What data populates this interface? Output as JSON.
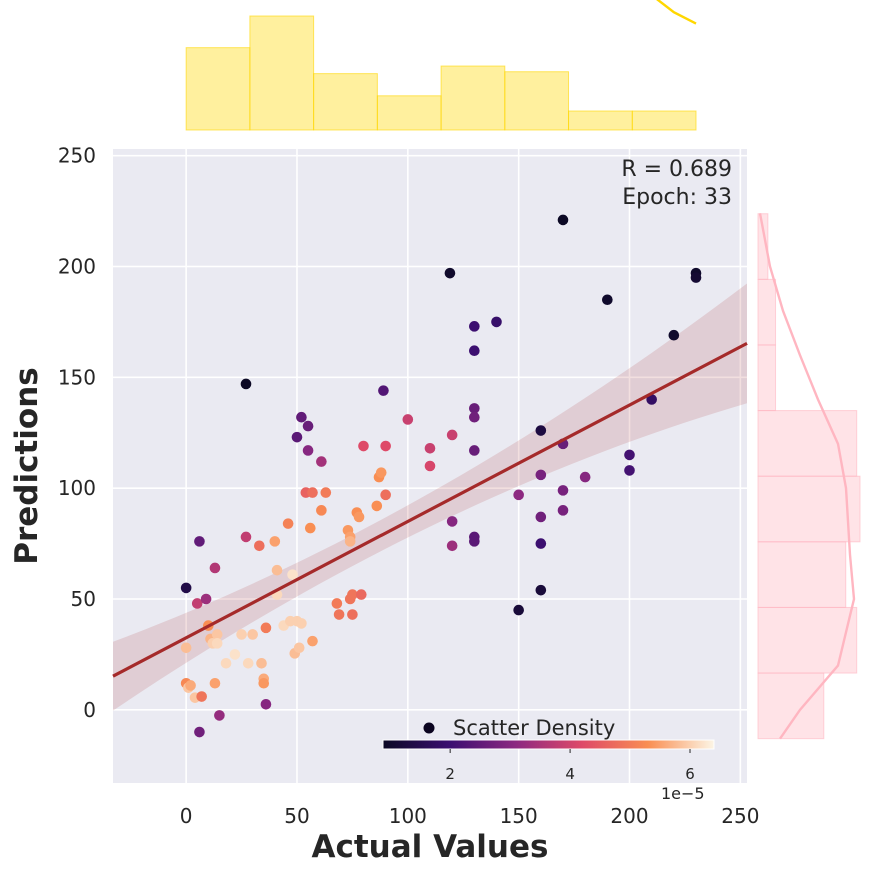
{
  "chart_data": {
    "type": "scatter",
    "xlabel": "Actual Values",
    "ylabel": "Predictions",
    "xlim": [
      -33,
      253
    ],
    "ylim": [
      -33,
      253
    ],
    "xticks": [
      "0",
      "50",
      "100",
      "150",
      "200",
      "250"
    ],
    "yticks": [
      "0",
      "50",
      "100",
      "150",
      "200",
      "250"
    ],
    "grid": true,
    "annotation": {
      "r_text": "R = 0.689",
      "epoch_text": "Epoch: 33"
    },
    "legend": {
      "label": "Scatter Density",
      "placement": "bottom-right"
    },
    "colorbar": {
      "ticks": [
        "2",
        "4",
        "6"
      ],
      "tick_values": [
        2,
        4,
        6
      ],
      "min": 0.88,
      "max": 6.4,
      "offset_label": "1e−5"
    },
    "regression": {
      "slope": 0.525,
      "intercept": 32.5,
      "ci_half_width_edges": 27,
      "ci_half_width_center": 7
    },
    "points": [
      [
        0,
        55,
        1.4
      ],
      [
        0,
        28,
        5.8
      ],
      [
        0,
        12,
        5.2
      ],
      [
        1,
        10,
        5.9
      ],
      [
        2,
        11,
        5.6
      ],
      [
        4,
        5.5,
        5.9
      ],
      [
        5,
        48,
        3.8
      ],
      [
        6,
        76,
        2.5
      ],
      [
        6,
        -10,
        2.7
      ],
      [
        7,
        6,
        4.9
      ],
      [
        9,
        50,
        3.3
      ],
      [
        10,
        38,
        5.3
      ],
      [
        11,
        32,
        5.7
      ],
      [
        12,
        30,
        6.0
      ],
      [
        13,
        64,
        3.6
      ],
      [
        13,
        12,
        5.5
      ],
      [
        14,
        34,
        5.9
      ],
      [
        14,
        30,
        6.1
      ],
      [
        15,
        -2.5,
        3.2
      ],
      [
        18,
        21,
        6.1
      ],
      [
        22,
        25,
        6.2
      ],
      [
        25,
        34,
        6.0
      ],
      [
        27,
        147,
        0.9
      ],
      [
        27,
        78,
        3.8
      ],
      [
        28,
        21,
        6.1
      ],
      [
        30,
        34,
        5.9
      ],
      [
        33,
        74,
        4.8
      ],
      [
        34,
        21,
        5.8
      ],
      [
        35,
        14,
        5.6
      ],
      [
        35,
        12,
        5.4
      ],
      [
        36,
        2.5,
        3.0
      ],
      [
        36,
        37,
        5.0
      ],
      [
        40,
        76,
        5.5
      ],
      [
        41,
        63,
        5.8
      ],
      [
        41,
        52,
        6.1
      ],
      [
        44,
        38,
        6.1
      ],
      [
        46,
        84,
        5.1
      ],
      [
        47,
        40,
        6.0
      ],
      [
        48,
        61,
        6.2
      ],
      [
        49,
        25.5,
        5.8
      ],
      [
        50,
        40,
        6.0
      ],
      [
        50,
        123,
        2.4
      ],
      [
        51,
        28,
        5.9
      ],
      [
        52,
        132,
        2.5
      ],
      [
        52,
        39,
        6.0
      ],
      [
        54,
        98,
        4.6
      ],
      [
        55,
        117,
        3.0
      ],
      [
        55,
        128,
        2.6
      ],
      [
        56,
        82,
        5.3
      ],
      [
        57,
        98,
        4.8
      ],
      [
        57,
        31,
        5.5
      ],
      [
        61,
        112,
        3.4
      ],
      [
        61,
        90,
        5.2
      ],
      [
        63,
        98,
        5.0
      ],
      [
        68,
        48,
        5.0
      ],
      [
        69,
        43,
        4.9
      ],
      [
        73,
        81,
        5.4
      ],
      [
        74,
        78,
        5.5
      ],
      [
        74,
        76,
        5.7
      ],
      [
        74,
        50,
        4.9
      ],
      [
        75,
        52,
        4.9
      ],
      [
        75,
        43,
        4.8
      ],
      [
        77,
        89,
        5.3
      ],
      [
        78,
        87,
        5.4
      ],
      [
        79,
        52,
        4.7
      ],
      [
        80,
        119,
        4.2
      ],
      [
        86,
        92,
        5.3
      ],
      [
        87,
        105,
        5.3
      ],
      [
        88,
        107,
        5.4
      ],
      [
        89,
        144,
        2.3
      ],
      [
        90,
        119,
        4.2
      ],
      [
        90,
        97,
        4.8
      ],
      [
        100,
        131,
        3.9
      ],
      [
        110,
        118,
        3.9
      ],
      [
        110,
        110,
        4.1
      ],
      [
        119,
        197,
        1.0
      ],
      [
        120,
        124,
        3.9
      ],
      [
        120,
        85,
        3.0
      ],
      [
        120,
        74,
        3.3
      ],
      [
        130,
        173,
        2.0
      ],
      [
        130,
        162,
        2.0
      ],
      [
        130,
        136,
        2.6
      ],
      [
        130,
        132,
        2.7
      ],
      [
        130,
        117,
        2.6
      ],
      [
        130,
        78,
        2.4
      ],
      [
        130,
        76,
        2.4
      ],
      [
        140,
        175,
        1.9
      ],
      [
        150,
        97,
        3.1
      ],
      [
        150,
        45,
        1.2
      ],
      [
        160,
        126,
        1.3
      ],
      [
        160,
        106,
        2.8
      ],
      [
        160,
        87,
        2.7
      ],
      [
        160,
        75,
        2.0
      ],
      [
        160,
        54,
        1.2
      ],
      [
        170,
        221,
        0.9
      ],
      [
        170,
        120,
        2.6
      ],
      [
        170,
        99,
        2.8
      ],
      [
        170,
        90,
        2.8
      ],
      [
        180,
        105,
        3.0
      ],
      [
        190,
        185,
        1.0
      ],
      [
        200,
        115,
        2.1
      ],
      [
        200,
        108,
        2.1
      ],
      [
        210,
        140,
        1.8
      ],
      [
        220,
        169,
        1.0
      ],
      [
        230,
        197,
        1.0
      ],
      [
        230,
        195,
        1.1
      ]
    ],
    "top_histogram": {
      "bin_edges": [
        0,
        28.75,
        57.5,
        86.25,
        115,
        143.75,
        172.5,
        201.25,
        230
      ],
      "counts": [
        13,
        18,
        8.9,
        5.4,
        10.1,
        9.2,
        3.0,
        3.0
      ]
    },
    "right_histogram": {
      "bin_edges": [
        -13,
        16.6,
        46.2,
        75.8,
        105.4,
        135,
        164.6,
        194.2,
        223.8
      ],
      "counts": [
        6,
        9,
        8,
        9.3,
        9,
        1.6,
        1.6,
        0.9
      ]
    }
  }
}
